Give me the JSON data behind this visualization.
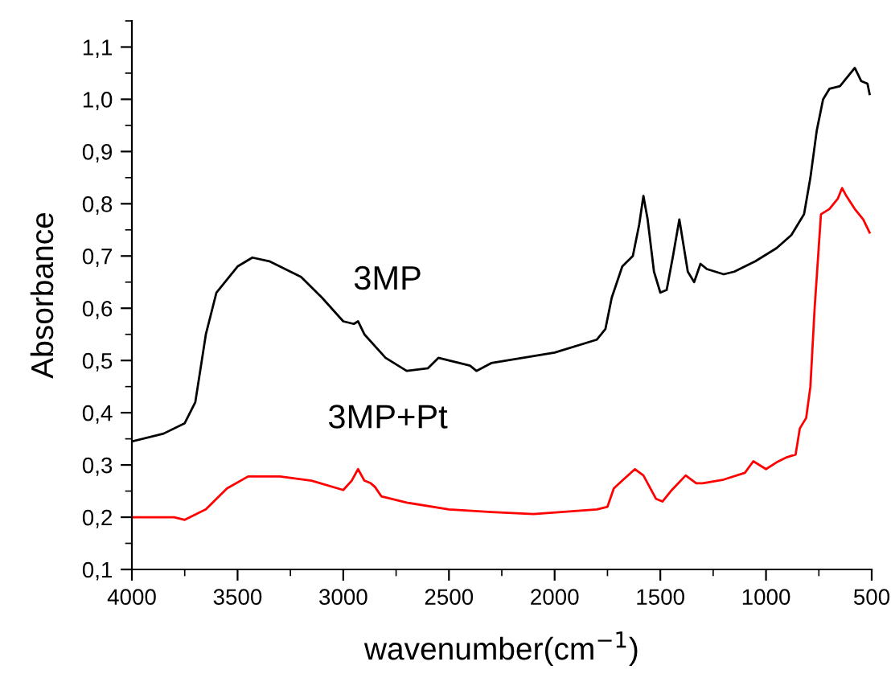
{
  "chart_data": {
    "type": "line",
    "xlabel": "wavenumber(cm$^{−1}$)",
    "ylabel": "Absorbance",
    "xlim": [
      4000,
      500
    ],
    "ylim": [
      0.1,
      1.15
    ],
    "xticks": [
      4000,
      3500,
      3000,
      2500,
      2000,
      1500,
      1000,
      500
    ],
    "yticks": [
      {
        "value": 0.1,
        "label": "0,1"
      },
      {
        "value": 0.2,
        "label": "0,2"
      },
      {
        "value": 0.3,
        "label": "0,3"
      },
      {
        "value": 0.4,
        "label": "0,4"
      },
      {
        "value": 0.5,
        "label": "0,5"
      },
      {
        "value": 0.6,
        "label": "0,6"
      },
      {
        "value": 0.7,
        "label": "0,7"
      },
      {
        "value": 0.8,
        "label": "0,8"
      },
      {
        "value": 0.9,
        "label": "0,9"
      },
      {
        "value": 1.0,
        "label": "1,0"
      },
      {
        "value": 1.1,
        "label": "1,1"
      }
    ],
    "grid": false,
    "legend": false,
    "line_style": "solid",
    "marker": "none",
    "series": [
      {
        "name": "3MP",
        "color": "#000000",
        "x": [
          4000,
          3850,
          3750,
          3700,
          3650,
          3600,
          3500,
          3430,
          3350,
          3200,
          3100,
          3000,
          2950,
          2930,
          2900,
          2800,
          2700,
          2600,
          2550,
          2500,
          2400,
          2370,
          2300,
          2000,
          1800,
          1760,
          1730,
          1680,
          1630,
          1600,
          1580,
          1560,
          1530,
          1500,
          1470,
          1440,
          1410,
          1390,
          1370,
          1340,
          1310,
          1280,
          1200,
          1150,
          1050,
          950,
          880,
          820,
          790,
          760,
          730,
          700,
          650,
          600,
          580,
          550,
          520,
          510
        ],
        "values": [
          0.345,
          0.36,
          0.38,
          0.42,
          0.55,
          0.63,
          0.68,
          0.697,
          0.69,
          0.66,
          0.62,
          0.575,
          0.57,
          0.575,
          0.55,
          0.505,
          0.48,
          0.485,
          0.505,
          0.5,
          0.49,
          0.48,
          0.495,
          0.515,
          0.54,
          0.56,
          0.62,
          0.68,
          0.7,
          0.76,
          0.815,
          0.77,
          0.67,
          0.63,
          0.635,
          0.7,
          0.77,
          0.72,
          0.67,
          0.65,
          0.685,
          0.675,
          0.665,
          0.67,
          0.69,
          0.715,
          0.74,
          0.78,
          0.85,
          0.94,
          1.0,
          1.02,
          1.025,
          1.05,
          1.06,
          1.035,
          1.03,
          1.01
        ]
      },
      {
        "name": "3MP+Pt",
        "color": "#ff0000",
        "x": [
          4000,
          3800,
          3750,
          3650,
          3550,
          3450,
          3300,
          3150,
          3000,
          2960,
          2930,
          2900,
          2870,
          2850,
          2820,
          2700,
          2500,
          2300,
          2100,
          1800,
          1750,
          1720,
          1680,
          1620,
          1580,
          1520,
          1490,
          1450,
          1380,
          1330,
          1300,
          1200,
          1100,
          1060,
          1000,
          950,
          900,
          860,
          840,
          810,
          790,
          770,
          740,
          700,
          660,
          640,
          620,
          580,
          540,
          510
        ],
        "values": [
          0.2,
          0.2,
          0.195,
          0.215,
          0.255,
          0.278,
          0.278,
          0.27,
          0.252,
          0.27,
          0.292,
          0.27,
          0.265,
          0.258,
          0.24,
          0.228,
          0.215,
          0.21,
          0.206,
          0.215,
          0.22,
          0.255,
          0.27,
          0.292,
          0.28,
          0.235,
          0.23,
          0.25,
          0.28,
          0.265,
          0.265,
          0.272,
          0.285,
          0.307,
          0.292,
          0.305,
          0.315,
          0.32,
          0.37,
          0.39,
          0.45,
          0.6,
          0.78,
          0.79,
          0.81,
          0.83,
          0.815,
          0.79,
          0.77,
          0.745
        ]
      }
    ]
  }
}
